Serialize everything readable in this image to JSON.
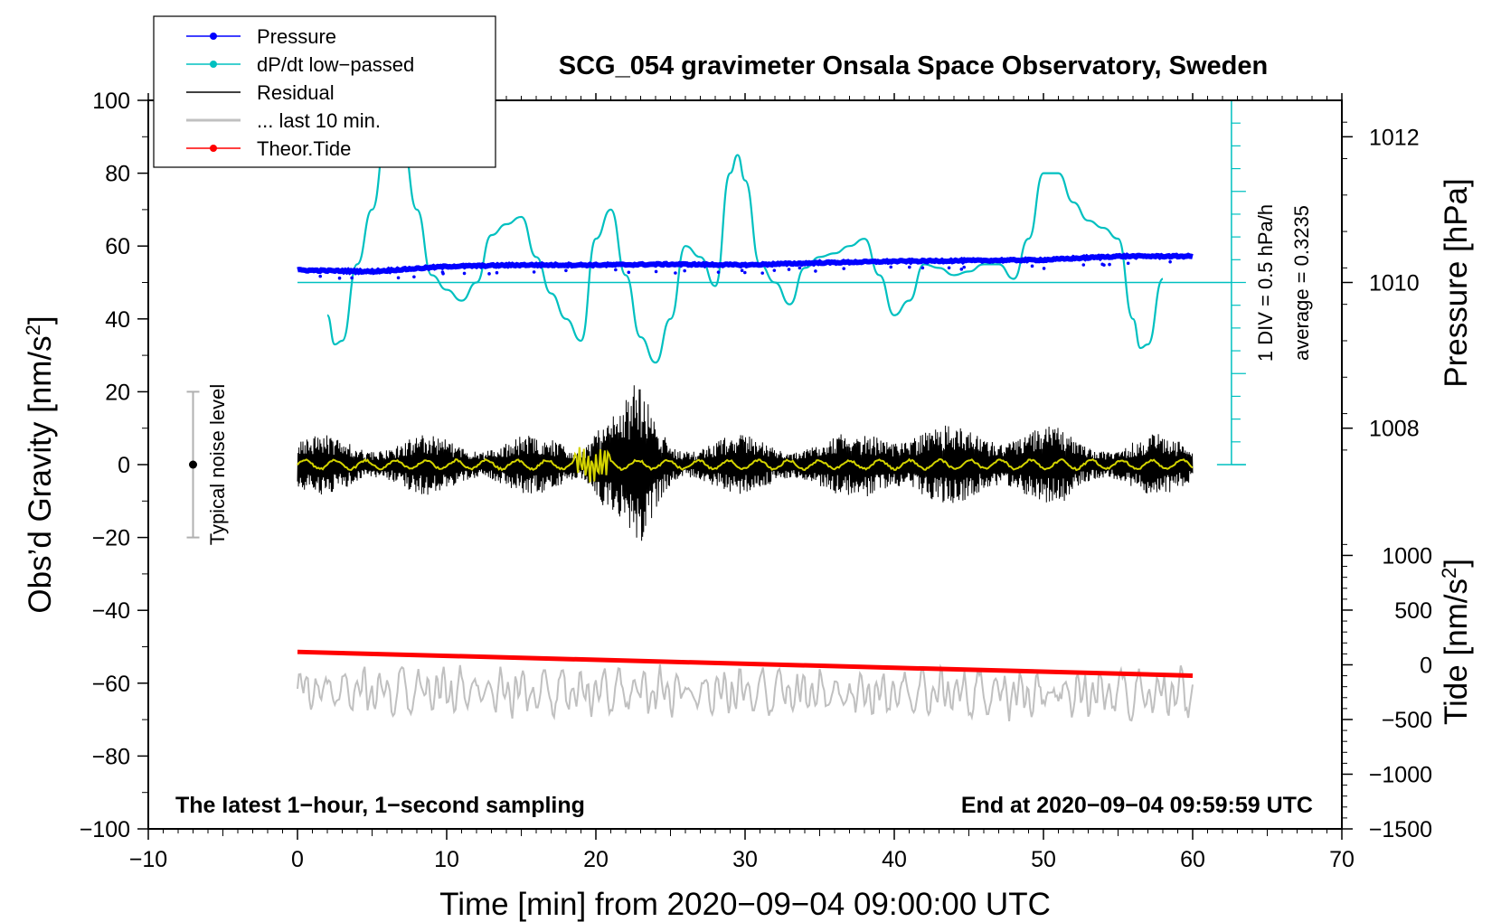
{
  "chart_data": {
    "type": "line",
    "title": "SCG_054 gravimeter Onsala Space Observatory, Sweden",
    "xlabel": "Time [min] from 2020−09−04 09:00:00 UTC",
    "ylabel_left_main": "Obs’d Gravity [nm/s",
    "ylabel_left_sup": "2",
    "ylabel_left_end": "]",
    "ylabel_right_pressure": "Pressure [hPa]",
    "ylabel_right_tide_main": "Tide [nm/s",
    "ylabel_right_tide_sup": "2",
    "ylabel_right_tide_end": "]",
    "note_left": "The latest 1−hour, 1−second sampling",
    "note_right": "End at 2020−09−04 09:59:59 UTC",
    "noise_label": "Typical noise level",
    "dpdt_scale_label": "1 DIV = 0.5 hPa/h",
    "dpdt_average_label": "average = 0.3235",
    "xlim": [
      -10,
      70
    ],
    "x_ticks": [
      "−10",
      "0",
      "10",
      "20",
      "30",
      "40",
      "50",
      "60",
      "70"
    ],
    "x_tick_values": [
      -10,
      0,
      10,
      20,
      30,
      40,
      50,
      60,
      70
    ],
    "gravity_ylim": [
      -100,
      100
    ],
    "gravity_ticks": [
      "−100",
      "−80",
      "−60",
      "−40",
      "−20",
      "0",
      "20",
      "40",
      "60",
      "80",
      "100"
    ],
    "gravity_tick_values": [
      -100,
      -80,
      -60,
      -40,
      -20,
      0,
      20,
      40,
      60,
      80,
      100
    ],
    "pressure_ticks": [
      "1012",
      "1010",
      "1008"
    ],
    "pressure_tick_values": [
      1012,
      1010,
      1008
    ],
    "pressure_scale": {
      "hpa_per_gravity_unit": 0.05,
      "ref_hpa": 1010,
      "ref_gravity": 50
    },
    "tide_ticks": [
      "1000",
      "500",
      "0",
      "−500",
      "−1000",
      "−1500"
    ],
    "tide_tick_values": [
      1000,
      500,
      0,
      -500,
      -1000,
      -1500
    ],
    "tide_scale": {
      "nm_per_gravity_unit": 33.3,
      "ref_tide": -1500,
      "ref_gravity": -100
    },
    "legend": [
      {
        "label": "Pressure",
        "color": "#0000ff",
        "marker": true
      },
      {
        "label": "dP/dt low−passed",
        "color": "#00c0c0",
        "marker": true
      },
      {
        "label": "Residual",
        "color": "#000000",
        "marker": false
      },
      {
        "label": "... last 10 min.",
        "color": "#c0c0c0",
        "marker": false
      },
      {
        "label": "Theor.Tide",
        "color": "#ff0000",
        "marker": true
      }
    ],
    "series": [
      {
        "name": "Pressure",
        "color": "#0000ff",
        "axis": "pressure",
        "x": [
          0,
          5,
          10,
          15,
          20,
          25,
          30,
          35,
          40,
          45,
          50,
          55,
          60
        ],
        "y": [
          1010.17,
          1010.15,
          1010.22,
          1010.24,
          1010.24,
          1010.25,
          1010.24,
          1010.27,
          1010.29,
          1010.3,
          1010.31,
          1010.36,
          1010.36
        ]
      },
      {
        "name": "dP/dt low−passed",
        "color": "#00c0c0",
        "axis": "gravity",
        "x": [
          2,
          2.5,
          3,
          4,
          5,
          6,
          7,
          8,
          9,
          10,
          11,
          12,
          13,
          14,
          15,
          16,
          17,
          18,
          19,
          20,
          21,
          22,
          23,
          24,
          25,
          26,
          27,
          28,
          29,
          29.5,
          30,
          31,
          32,
          33,
          34,
          35,
          36,
          37,
          38,
          39,
          40,
          41,
          42,
          43,
          44,
          45,
          46,
          47,
          48,
          49,
          50,
          51,
          52,
          53,
          54,
          55,
          56,
          56.5,
          57,
          58
        ],
        "y": [
          41,
          33,
          34,
          55,
          70,
          92,
          90,
          70,
          52,
          48,
          45,
          50,
          63,
          66,
          68,
          57,
          47,
          40,
          34,
          62,
          70,
          52,
          35,
          28,
          40,
          60,
          57,
          49,
          80,
          85,
          78,
          55,
          50,
          44,
          54,
          57,
          58,
          60,
          62,
          52,
          41,
          45,
          55,
          54,
          52,
          53,
          55,
          55,
          51,
          62,
          80,
          80,
          72,
          67,
          65,
          62,
          40,
          32,
          33,
          51
        ]
      },
      {
        "name": "Residual",
        "color": "#000000",
        "axis": "gravity",
        "x": [
          0,
          60
        ],
        "y": [
          0,
          0
        ],
        "amplitude_range": [
          -25,
          25
        ]
      },
      {
        "name": "... last 10 min.",
        "color": "#c0c0c0",
        "axis": "gravity",
        "x": [
          0,
          60
        ],
        "y": [
          -62,
          -63
        ],
        "amplitude_range": [
          -72,
          -54
        ]
      },
      {
        "name": "Theor.Tide",
        "color": "#ff0000",
        "axis": "tide",
        "x": [
          0,
          60
        ],
        "y": [
          118,
          -99
        ]
      }
    ],
    "noise_bar": {
      "x": -7,
      "y_min": -20,
      "y_max": 20
    },
    "dpdt_axis": {
      "x": 62.6,
      "baseline_gravity": 50,
      "zero_gravity": 0,
      "top_gravity": 100
    }
  }
}
